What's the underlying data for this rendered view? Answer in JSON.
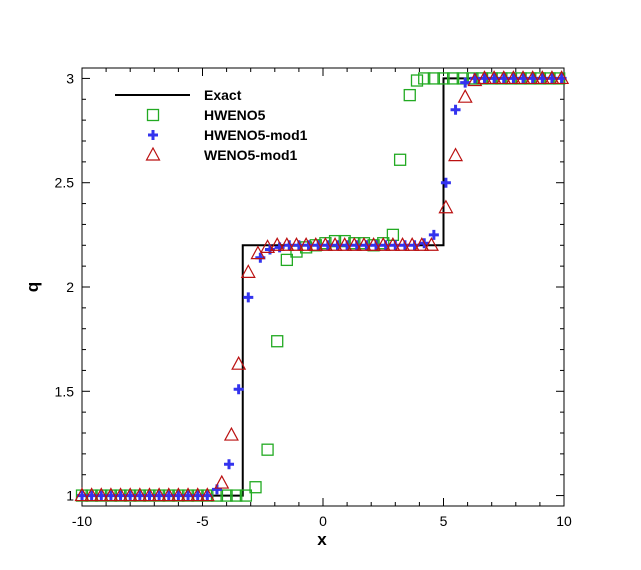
{
  "chart_data": {
    "type": "line",
    "title": "",
    "xlabel": "x",
    "ylabel": "q",
    "xlim": [
      -10,
      10
    ],
    "ylim": [
      0.95,
      3.05
    ],
    "x_ticks": [
      -10,
      -5,
      0,
      5,
      10
    ],
    "x_tick_labels": [
      "-10",
      "-5",
      "0",
      "5",
      "10"
    ],
    "y_ticks": [
      1,
      1.5,
      2,
      2.5,
      3
    ],
    "y_tick_labels": [
      "1",
      "1.5",
      "2",
      "2.5",
      "3"
    ],
    "grid": false,
    "legend_position": "top-left",
    "series": [
      {
        "name": "Exact",
        "kind": "line",
        "color": "#000000",
        "x": [
          -10,
          -3.33,
          -3.33,
          5.0,
          5.0,
          10
        ],
        "y": [
          1.0,
          1.0,
          2.2,
          2.2,
          3.0,
          3.0
        ]
      },
      {
        "name": "HWENO5",
        "kind": "marker",
        "marker": "square",
        "color": "#22aa22",
        "x": [
          -10,
          -9.6,
          -9.2,
          -8.8,
          -8.4,
          -8.0,
          -7.6,
          -7.2,
          -6.8,
          -6.4,
          -6.0,
          -5.6,
          -5.2,
          -4.8,
          -4.4,
          -4.0,
          -3.6,
          -3.2,
          -2.8,
          -2.3,
          -1.9,
          -1.5,
          -1.1,
          -0.7,
          -0.3,
          0.1,
          0.5,
          0.9,
          1.3,
          1.7,
          2.1,
          2.5,
          2.9,
          3.2,
          3.6,
          3.9,
          4.2,
          4.6,
          5.0,
          5.4,
          5.8,
          6.2,
          6.6,
          7.0,
          7.4,
          7.8,
          8.2,
          8.6,
          9.0,
          9.4,
          9.8
        ],
        "y": [
          1.0,
          1.0,
          1.0,
          1.0,
          1.0,
          1.0,
          1.0,
          1.0,
          1.0,
          1.0,
          1.0,
          1.0,
          1.0,
          1.0,
          1.0,
          1.0,
          1.0,
          1.0,
          1.04,
          1.22,
          1.74,
          2.13,
          2.17,
          2.19,
          2.2,
          2.21,
          2.22,
          2.22,
          2.21,
          2.21,
          2.2,
          2.21,
          2.25,
          2.61,
          2.92,
          2.99,
          3.0,
          3.0,
          3.0,
          3.0,
          3.0,
          3.0,
          3.0,
          3.0,
          3.0,
          3.0,
          3.0,
          3.0,
          3.0,
          3.0,
          3.0
        ]
      },
      {
        "name": "HWENO5-mod1",
        "kind": "marker",
        "marker": "plus",
        "color": "#3333ee",
        "x": [
          -10,
          -9.6,
          -9.2,
          -8.8,
          -8.4,
          -8.0,
          -7.6,
          -7.2,
          -6.8,
          -6.4,
          -6.0,
          -5.6,
          -5.2,
          -4.8,
          -4.4,
          -3.9,
          -3.5,
          -3.1,
          -2.6,
          -2.2,
          -1.8,
          -1.4,
          -1.0,
          -0.6,
          -0.2,
          0.2,
          0.6,
          1.0,
          1.4,
          1.8,
          2.2,
          2.6,
          3.0,
          3.4,
          3.8,
          4.2,
          4.6,
          5.1,
          5.5,
          5.9,
          6.3,
          6.7,
          7.1,
          7.5,
          7.9,
          8.3,
          8.7,
          9.1,
          9.5,
          9.9
        ],
        "y": [
          1.0,
          1.0,
          1.0,
          1.0,
          1.0,
          1.0,
          1.0,
          1.0,
          1.0,
          1.0,
          1.0,
          1.0,
          1.0,
          1.0,
          1.03,
          1.15,
          1.51,
          1.95,
          2.14,
          2.18,
          2.19,
          2.2,
          2.2,
          2.2,
          2.2,
          2.2,
          2.2,
          2.2,
          2.2,
          2.2,
          2.2,
          2.2,
          2.2,
          2.2,
          2.2,
          2.21,
          2.25,
          2.5,
          2.85,
          2.98,
          3.0,
          3.0,
          3.0,
          3.0,
          3.0,
          3.0,
          3.0,
          3.0,
          3.0,
          3.0
        ]
      },
      {
        "name": "WENO5-mod1",
        "kind": "marker",
        "marker": "triangle",
        "color": "#bb1111",
        "x": [
          -10,
          -9.6,
          -9.2,
          -8.8,
          -8.4,
          -8.0,
          -7.6,
          -7.2,
          -6.8,
          -6.4,
          -6.0,
          -5.6,
          -5.2,
          -4.8,
          -4.2,
          -3.8,
          -3.5,
          -3.1,
          -2.7,
          -2.3,
          -1.9,
          -1.5,
          -1.1,
          -0.7,
          -0.3,
          0.1,
          0.5,
          0.9,
          1.3,
          1.7,
          2.1,
          2.5,
          2.9,
          3.3,
          3.7,
          4.1,
          4.5,
          5.1,
          5.5,
          5.9,
          6.3,
          6.7,
          7.1,
          7.5,
          7.9,
          8.3,
          8.7,
          9.1,
          9.5,
          9.9
        ],
        "y": [
          1.0,
          1.0,
          1.0,
          1.0,
          1.0,
          1.0,
          1.0,
          1.0,
          1.0,
          1.0,
          1.0,
          1.0,
          1.0,
          1.0,
          1.06,
          1.29,
          1.63,
          2.07,
          2.16,
          2.19,
          2.2,
          2.2,
          2.2,
          2.2,
          2.2,
          2.2,
          2.2,
          2.2,
          2.2,
          2.2,
          2.2,
          2.2,
          2.2,
          2.2,
          2.2,
          2.2,
          2.2,
          2.38,
          2.63,
          2.91,
          2.99,
          3.0,
          3.0,
          3.0,
          3.0,
          3.0,
          3.0,
          3.0,
          3.0,
          3.0
        ]
      }
    ]
  }
}
